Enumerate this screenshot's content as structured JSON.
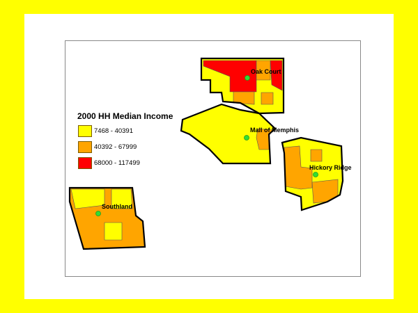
{
  "legend": {
    "title": "2000 HH Median Income",
    "classes": [
      {
        "label": "7468 - 40391",
        "color": "#ffff00"
      },
      {
        "label": "40392 - 67999",
        "color": "#ffa500"
      },
      {
        "label": "68000 - 117499",
        "color": "#ff0000"
      }
    ]
  },
  "places": {
    "oak_court": "Oak Court",
    "mall_of_memphis": "Mall of Memphis",
    "hickory_ridge": "Hickory Ridge",
    "southland": "Southland"
  },
  "colors": {
    "background": "#ffff00",
    "point": "#33dd33",
    "outline": "#000000"
  }
}
